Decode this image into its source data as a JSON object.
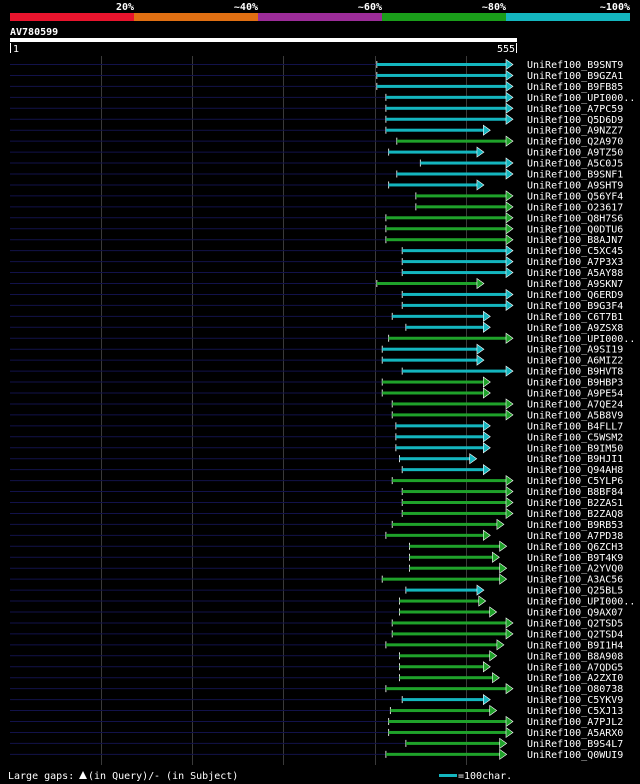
{
  "query": {
    "name": "AV780599",
    "start_label": "1",
    "end_label": "555",
    "length": 555
  },
  "scale_labels": [
    "20%",
    "~40%",
    "~60%",
    "~80%",
    "~100%"
  ],
  "scale_colors": [
    "#e8142d",
    "#e06f12",
    "#9c2c99",
    "#1a9e1a",
    "#14b6bf"
  ],
  "colors": {
    "identity_low": "#14b6bf",
    "identity_high": "#1fa22a",
    "guide": "#12124a"
  },
  "footer": {
    "gaps_text": "Large gaps:",
    "query_text": "(in Query)/",
    "subject_dash": "-",
    "subject_text": " (in Subject)",
    "legend_text": "=100char."
  },
  "chart_data": {
    "type": "alignment-map",
    "x_range": [
      1,
      555
    ],
    "hits": [
      {
        "name": "UniRef100_B9SNT9",
        "start": 405,
        "end": 555,
        "color": "cyan"
      },
      {
        "name": "UniRef100_B9GZA1",
        "start": 405,
        "end": 555,
        "color": "cyan"
      },
      {
        "name": "UniRef100_B9FB85",
        "start": 405,
        "end": 555,
        "color": "cyan"
      },
      {
        "name": "UniRef100_UPI000..",
        "start": 415,
        "end": 555,
        "color": "cyan"
      },
      {
        "name": "UniRef100_A7PC59",
        "start": 415,
        "end": 555,
        "color": "cyan"
      },
      {
        "name": "UniRef100_Q5D6D9",
        "start": 415,
        "end": 555,
        "color": "cyan"
      },
      {
        "name": "UniRef100_A9NZZ7",
        "start": 415,
        "end": 530,
        "color": "cyan"
      },
      {
        "name": "UniRef100_Q2A970",
        "start": 427,
        "end": 555,
        "color": "green"
      },
      {
        "name": "UniRef100_A9TZ50",
        "start": 418,
        "end": 523,
        "color": "cyan"
      },
      {
        "name": "UniRef100_A5C0J5",
        "start": 453,
        "end": 555,
        "color": "cyan"
      },
      {
        "name": "UniRef100_B9SNF1",
        "start": 427,
        "end": 555,
        "color": "cyan"
      },
      {
        "name": "UniRef100_A9SHT9",
        "start": 418,
        "end": 523,
        "color": "cyan"
      },
      {
        "name": "UniRef100_Q56YF4",
        "start": 448,
        "end": 555,
        "color": "green"
      },
      {
        "name": "UniRef100_O23617",
        "start": 448,
        "end": 555,
        "color": "green"
      },
      {
        "name": "UniRef100_Q8H7S6",
        "start": 415,
        "end": 555,
        "color": "green"
      },
      {
        "name": "UniRef100_Q0DTU6",
        "start": 415,
        "end": 555,
        "color": "green"
      },
      {
        "name": "UniRef100_B8AJN7",
        "start": 415,
        "end": 555,
        "color": "green"
      },
      {
        "name": "UniRef100_C5XC45",
        "start": 433,
        "end": 555,
        "color": "cyan"
      },
      {
        "name": "UniRef100_A7P3X3",
        "start": 433,
        "end": 555,
        "color": "cyan"
      },
      {
        "name": "UniRef100_A5AY88",
        "start": 433,
        "end": 555,
        "color": "cyan"
      },
      {
        "name": "UniRef100_A9SKN7",
        "start": 405,
        "end": 523,
        "color": "green"
      },
      {
        "name": "UniRef100_Q6ERD9",
        "start": 433,
        "end": 555,
        "color": "cyan"
      },
      {
        "name": "UniRef100_B9G3F4",
        "start": 433,
        "end": 555,
        "color": "cyan"
      },
      {
        "name": "UniRef100_C6T7B1",
        "start": 422,
        "end": 530,
        "color": "cyan"
      },
      {
        "name": "UniRef100_A9ZSX8",
        "start": 437,
        "end": 530,
        "color": "cyan"
      },
      {
        "name": "UniRef100_UPI000..",
        "start": 418,
        "end": 555,
        "color": "green"
      },
      {
        "name": "UniRef100_A9SI19",
        "start": 411,
        "end": 523,
        "color": "cyan"
      },
      {
        "name": "UniRef100_A6MIZ2",
        "start": 411,
        "end": 523,
        "color": "cyan"
      },
      {
        "name": "UniRef100_B9HVT8",
        "start": 433,
        "end": 555,
        "color": "cyan"
      },
      {
        "name": "UniRef100_B9HBP3",
        "start": 411,
        "end": 530,
        "color": "green"
      },
      {
        "name": "UniRef100_A9PE54",
        "start": 411,
        "end": 530,
        "color": "green"
      },
      {
        "name": "UniRef100_A7QE24",
        "start": 422,
        "end": 555,
        "color": "green"
      },
      {
        "name": "UniRef100_A5B8V9",
        "start": 422,
        "end": 555,
        "color": "green"
      },
      {
        "name": "UniRef100_B4FLL7",
        "start": 426,
        "end": 530,
        "color": "cyan"
      },
      {
        "name": "UniRef100_C5WSM2",
        "start": 426,
        "end": 530,
        "color": "cyan"
      },
      {
        "name": "UniRef100_B9IM50",
        "start": 426,
        "end": 530,
        "color": "cyan"
      },
      {
        "name": "UniRef100_B9HJI1",
        "start": 430,
        "end": 515,
        "color": "cyan"
      },
      {
        "name": "UniRef100_Q94AH8",
        "start": 433,
        "end": 530,
        "color": "cyan"
      },
      {
        "name": "UniRef100_C5YLP6",
        "start": 422,
        "end": 555,
        "color": "green"
      },
      {
        "name": "UniRef100_B8BF84",
        "start": 433,
        "end": 555,
        "color": "green"
      },
      {
        "name": "UniRef100_B2ZAS1",
        "start": 433,
        "end": 555,
        "color": "green"
      },
      {
        "name": "UniRef100_B2ZAQ8",
        "start": 433,
        "end": 555,
        "color": "green"
      },
      {
        "name": "UniRef100_B9RB53",
        "start": 422,
        "end": 545,
        "color": "green"
      },
      {
        "name": "UniRef100_A7PD38",
        "start": 415,
        "end": 530,
        "color": "green"
      },
      {
        "name": "UniRef100_Q6ZCH3",
        "start": 441,
        "end": 548,
        "color": "green"
      },
      {
        "name": "UniRef100_B9T4K9",
        "start": 441,
        "end": 540,
        "color": "green"
      },
      {
        "name": "UniRef100_A2YVQ0",
        "start": 441,
        "end": 548,
        "color": "green"
      },
      {
        "name": "UniRef100_A3AC56",
        "start": 411,
        "end": 548,
        "color": "green"
      },
      {
        "name": "UniRef100_Q25BL5",
        "start": 437,
        "end": 523,
        "color": "cyan"
      },
      {
        "name": "UniRef100_UPI000..",
        "start": 430,
        "end": 525,
        "color": "green"
      },
      {
        "name": "UniRef100_Q9AX07",
        "start": 430,
        "end": 537,
        "color": "green"
      },
      {
        "name": "UniRef100_Q2TSD5",
        "start": 422,
        "end": 555,
        "color": "green"
      },
      {
        "name": "UniRef100_Q2TSD4",
        "start": 422,
        "end": 555,
        "color": "green"
      },
      {
        "name": "UniRef100_B9I1H4",
        "start": 415,
        "end": 545,
        "color": "green"
      },
      {
        "name": "UniRef100_B8A908",
        "start": 430,
        "end": 537,
        "color": "green"
      },
      {
        "name": "UniRef100_A7QDG5",
        "start": 430,
        "end": 530,
        "color": "green"
      },
      {
        "name": "UniRef100_A2ZXI0",
        "start": 430,
        "end": 540,
        "color": "green"
      },
      {
        "name": "UniRef100_O80738",
        "start": 415,
        "end": 555,
        "color": "green"
      },
      {
        "name": "UniRef100_C5YKV9",
        "start": 433,
        "end": 530,
        "color": "cyan"
      },
      {
        "name": "UniRef100_C5XJ13",
        "start": 420,
        "end": 537,
        "color": "green"
      },
      {
        "name": "UniRef100_A7PJL2",
        "start": 418,
        "end": 555,
        "color": "green"
      },
      {
        "name": "UniRef100_A5ARX0",
        "start": 418,
        "end": 555,
        "color": "green"
      },
      {
        "name": "UniRef100_B9S4L7",
        "start": 437,
        "end": 548,
        "color": "green"
      },
      {
        "name": "UniRef100_Q0WUI9",
        "start": 415,
        "end": 548,
        "color": "green"
      }
    ]
  }
}
